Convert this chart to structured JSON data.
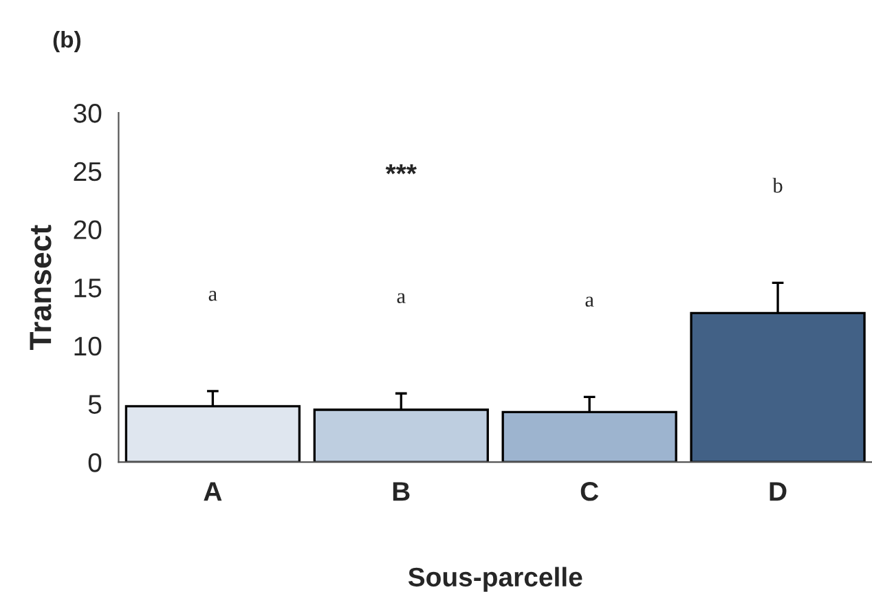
{
  "chart_data": {
    "type": "bar",
    "title": "(b)",
    "xlabel": "Sous-parcelle",
    "ylabel": "Transect",
    "categories": [
      "A",
      "B",
      "C",
      "D"
    ],
    "values": [
      4.8,
      4.5,
      4.3,
      12.8
    ],
    "errors": [
      1.3,
      1.4,
      1.3,
      2.6
    ],
    "colors": [
      "#dce6f2",
      "#b9cde5",
      "#95b3d7",
      "#366092"
    ],
    "ylim": [
      0,
      30
    ],
    "yticks": [
      0,
      5,
      10,
      15,
      20,
      25,
      30
    ],
    "grid": false,
    "legend": false,
    "annotations": [
      "a",
      "a",
      "a",
      "b",
      "***"
    ]
  }
}
